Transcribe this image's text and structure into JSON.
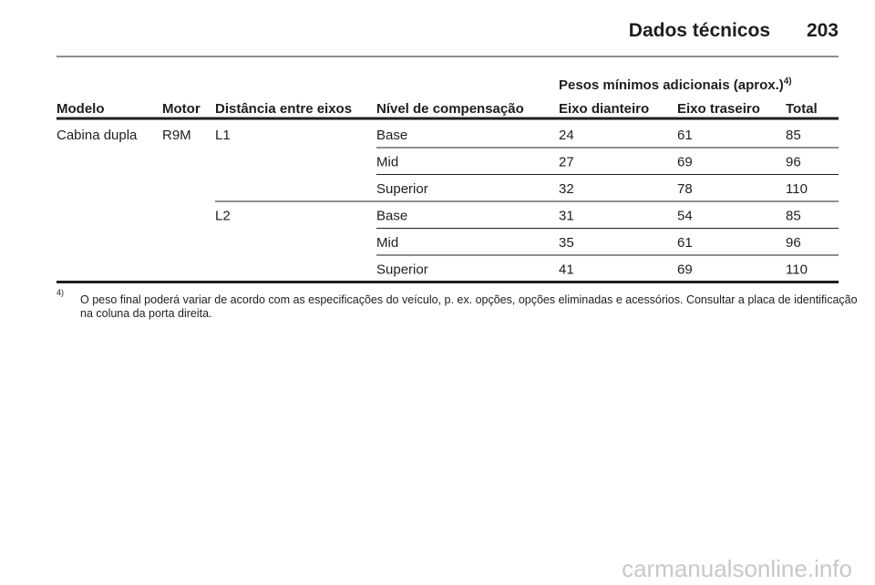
{
  "header": {
    "title": "Dados técnicos",
    "page_number": "203"
  },
  "table": {
    "group_header": {
      "text": "Pesos mínimos adicionais (aprox.)",
      "note_marker": "4)"
    },
    "columns": [
      "Modelo",
      "Motor",
      "Distância entre eixos",
      "Nível de compensação",
      "Eixo dianteiro",
      "Eixo traseiro",
      "Total"
    ],
    "rows": [
      {
        "model": "Cabina dupla",
        "motor": "R9M",
        "wheelbase": "L1",
        "level": "Base",
        "front": 24,
        "rear": 61,
        "total": 85
      },
      {
        "level": "Mid",
        "front": 27,
        "rear": 69,
        "total": 96
      },
      {
        "level": "Superior",
        "front": 32,
        "rear": 78,
        "total": 110
      },
      {
        "wheelbase": "L2",
        "level": "Base",
        "front": 31,
        "rear": 54,
        "total": 85
      },
      {
        "level": "Mid",
        "front": 35,
        "rear": 61,
        "total": 96
      },
      {
        "level": "Superior",
        "front": 41,
        "rear": 69,
        "total": 110
      }
    ]
  },
  "footnote": {
    "marker": "4)",
    "lines": [
      "O peso final poderá variar de acordo com as especificações do veículo, p. ex. opções, opções eliminadas e acessórios. Consultar a placa de identificação",
      "na coluna da porta direita."
    ]
  },
  "watermark": "carmanualsonline.info"
}
